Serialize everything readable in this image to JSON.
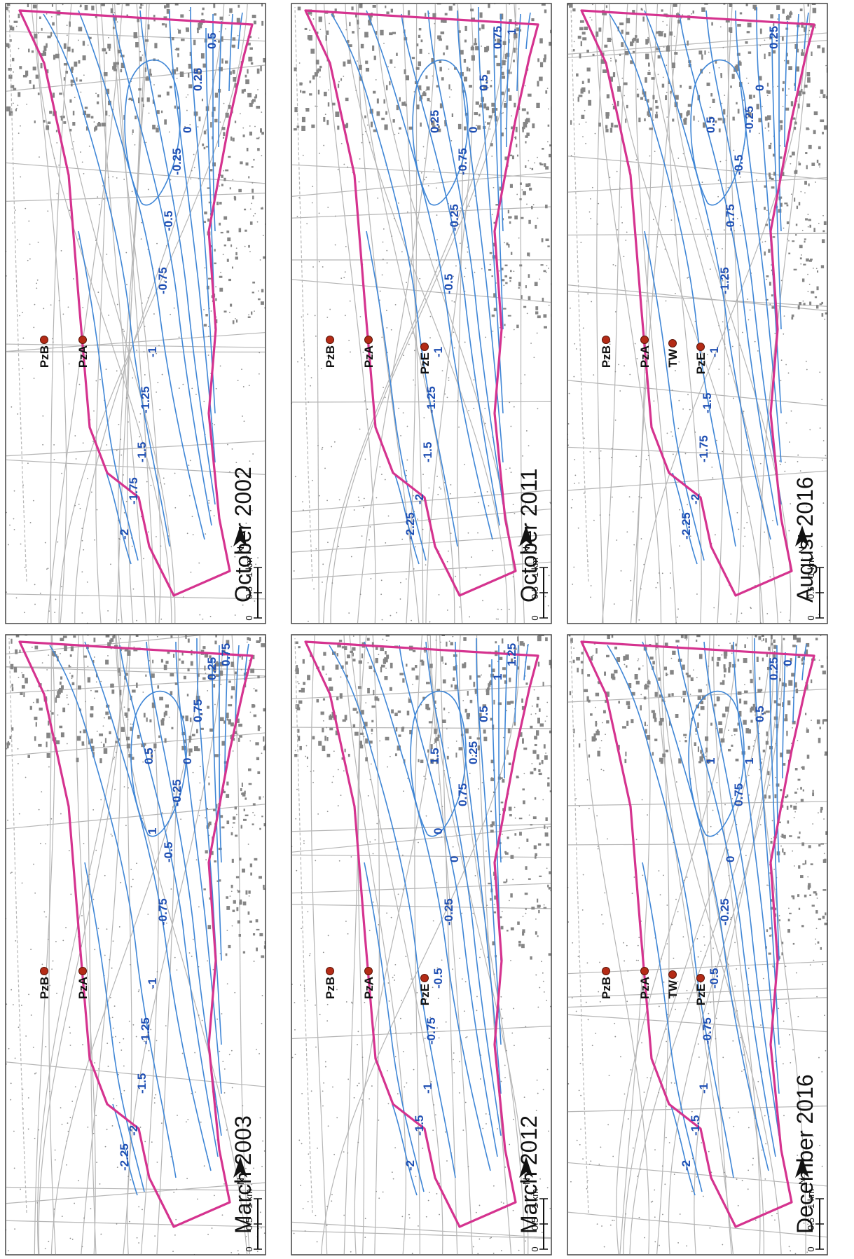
{
  "figure": {
    "panels": [
      {
        "date": "October 2002",
        "wells": [
          "PzA",
          "PzB"
        ],
        "contours": [
          "-2",
          "-1.75",
          "-1.5",
          "-1.25",
          "-1",
          "-0.75",
          "-0.5",
          "-0.25",
          "0",
          "0.25",
          "0.5"
        ]
      },
      {
        "date": "October 2011",
        "wells": [
          "PzE",
          "PzA",
          "PzB"
        ],
        "contours": [
          "-2.25",
          "-2",
          "-1.5",
          "-1.25",
          "-1",
          "-0.5",
          "-0.25",
          "-0.75",
          "0",
          "0.5",
          "0.75",
          "0.25",
          "1"
        ]
      },
      {
        "date": "August 2016",
        "wells": [
          "PzE",
          "TW",
          "PzA",
          "PzB"
        ],
        "contours": [
          "-2.25",
          "-2",
          "-1.75",
          "-1.5",
          "-1",
          "-1.25",
          "-0.75",
          "-0.5",
          "-0.25",
          "0",
          "0.25",
          "0.5"
        ]
      },
      {
        "date": "March 2003",
        "wells": [
          "PzA",
          "PzB"
        ],
        "contours": [
          "-2.25",
          "-2",
          "-1.5",
          "-1.25",
          "-1",
          "-0.75",
          "-0.5",
          "-0.25",
          "0",
          "0.75",
          "0.25",
          "0.5",
          "0.75",
          "1"
        ]
      },
      {
        "date": "March 2012",
        "wells": [
          "PzE",
          "PzA",
          "PzB"
        ],
        "contours": [
          "-2",
          "-1.5",
          "-1",
          "-0.75",
          "-0.5",
          "-0.25",
          "0",
          "0.75",
          "0.25",
          "0.5",
          "1",
          "1.5",
          "1.25",
          "0"
        ]
      },
      {
        "date": "December 2016",
        "wells": [
          "PzE",
          "TW",
          "PzA",
          "PzB"
        ],
        "contours": [
          "-2",
          "-1.5",
          "-1",
          "-0.75",
          "-0.5",
          "-0.25",
          "0",
          "0.75",
          "1",
          "0.5",
          "0.25",
          "1",
          "0"
        ]
      }
    ],
    "scale_ticks": [
      "0",
      "0.5",
      "1 km"
    ],
    "north_letter": "N",
    "colors": {
      "boundary": "#d5338f",
      "contour": "#3f86d6",
      "contour_label": "#1f4fb3",
      "well": "#b42b16"
    }
  }
}
